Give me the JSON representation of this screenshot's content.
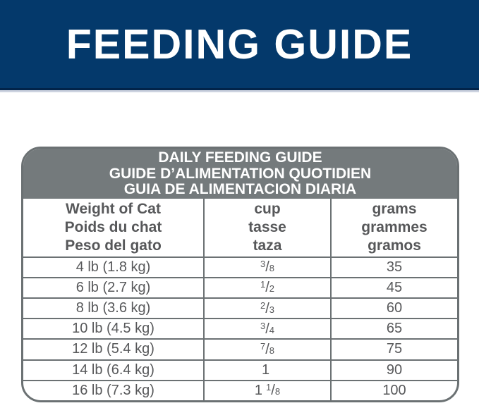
{
  "banner": {
    "title": "FEEDING GUIDE",
    "bg_color": "#04396b",
    "text_color": "#ffffff"
  },
  "table": {
    "title_lines": [
      "DAILY FEEDING GUIDE",
      "GUIDE D’ALIMENTATION QUOTIDIEN",
      "GUIA DE ALIMENTACION DIARIA"
    ],
    "columns": [
      {
        "lines": [
          "Weight of Cat",
          "Poids du chat",
          "Peso del gato"
        ]
      },
      {
        "lines": [
          "cup",
          "tasse",
          "taza"
        ]
      },
      {
        "lines": [
          "grams",
          "grammes",
          "gramos"
        ]
      }
    ],
    "rows": [
      {
        "weight": "4 lb (1.8 kg)",
        "cup": {
          "whole": "",
          "num": "3",
          "den": "8"
        },
        "grams": "35"
      },
      {
        "weight": "6 lb (2.7 kg)",
        "cup": {
          "whole": "",
          "num": "1",
          "den": "2"
        },
        "grams": "45"
      },
      {
        "weight": "8 lb (3.6 kg)",
        "cup": {
          "whole": "",
          "num": "2",
          "den": "3"
        },
        "grams": "60"
      },
      {
        "weight": "10 lb (4.5 kg)",
        "cup": {
          "whole": "",
          "num": "3",
          "den": "4"
        },
        "grams": "65"
      },
      {
        "weight": "12 lb (5.4 kg)",
        "cup": {
          "whole": "",
          "num": "7",
          "den": "8"
        },
        "grams": "75"
      },
      {
        "weight": "14 lb (6.4 kg)",
        "cup": {
          "whole": "1",
          "num": "",
          "den": ""
        },
        "grams": "90"
      },
      {
        "weight": "16 lb (7.3 kg)",
        "cup": {
          "whole": "1",
          "num": "1",
          "den": "8"
        },
        "grams": "100"
      }
    ],
    "colors": {
      "title_band_bg": "#747a7c",
      "border_gray": "#6b7173",
      "text_gray": "#57585a"
    }
  },
  "chart_data": {
    "type": "table",
    "title": "DAILY FEEDING GUIDE / GUIDE D’ALIMENTATION QUOTIDIEN / GUIA DE ALIMENTACION DIARIA",
    "columns": [
      "Weight of Cat / Poids du chat / Peso del gato",
      "cup / tasse / taza",
      "grams / grammes / gramos"
    ],
    "rows": [
      [
        "4 lb (1.8 kg)",
        "3/8",
        35
      ],
      [
        "6 lb (2.7 kg)",
        "1/2",
        45
      ],
      [
        "8 lb (3.6 kg)",
        "2/3",
        60
      ],
      [
        "10 lb (4.5 kg)",
        "3/4",
        65
      ],
      [
        "12 lb (5.4 kg)",
        "7/8",
        75
      ],
      [
        "14 lb (6.4 kg)",
        "1",
        90
      ],
      [
        "16 lb (7.3 kg)",
        "1 1/8",
        100
      ]
    ]
  }
}
